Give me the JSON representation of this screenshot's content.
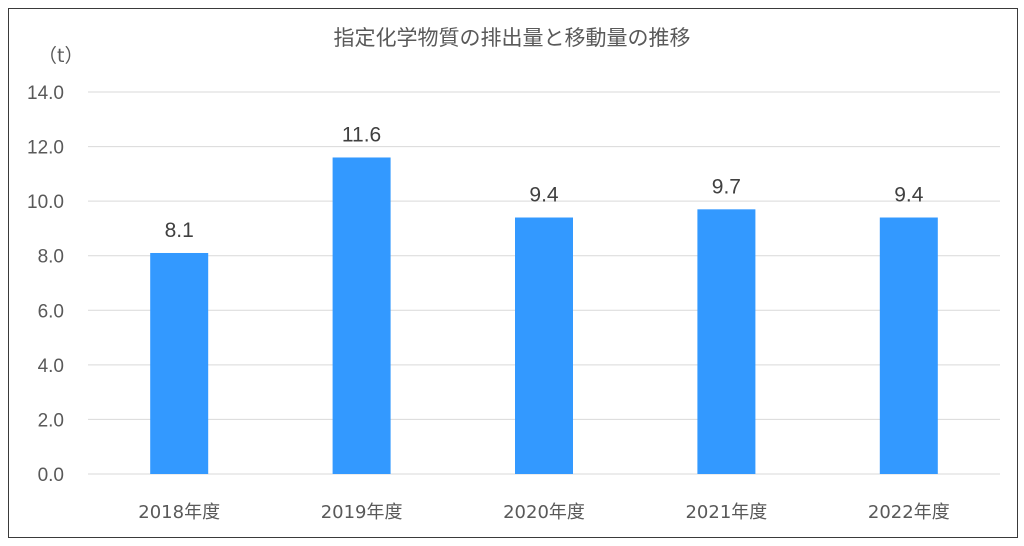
{
  "chart_data": {
    "type": "bar",
    "title": "指定化学物質の排出量と移動量の推移",
    "unit_label": "（t）",
    "categories": [
      "2018年度",
      "2019年度",
      "2020年度",
      "2021年度",
      "2022年度"
    ],
    "values": [
      8.1,
      11.6,
      9.4,
      9.7,
      9.4
    ],
    "data_labels": [
      "8.1",
      "11.6",
      "9.4",
      "9.7",
      "9.4"
    ],
    "ylim": [
      0,
      14
    ],
    "yticks": [
      "0.0",
      "2.0",
      "4.0",
      "6.0",
      "8.0",
      "10.0",
      "12.0",
      "14.0"
    ],
    "bar_color": "#3399ff",
    "grid": true,
    "legend": "none"
  }
}
